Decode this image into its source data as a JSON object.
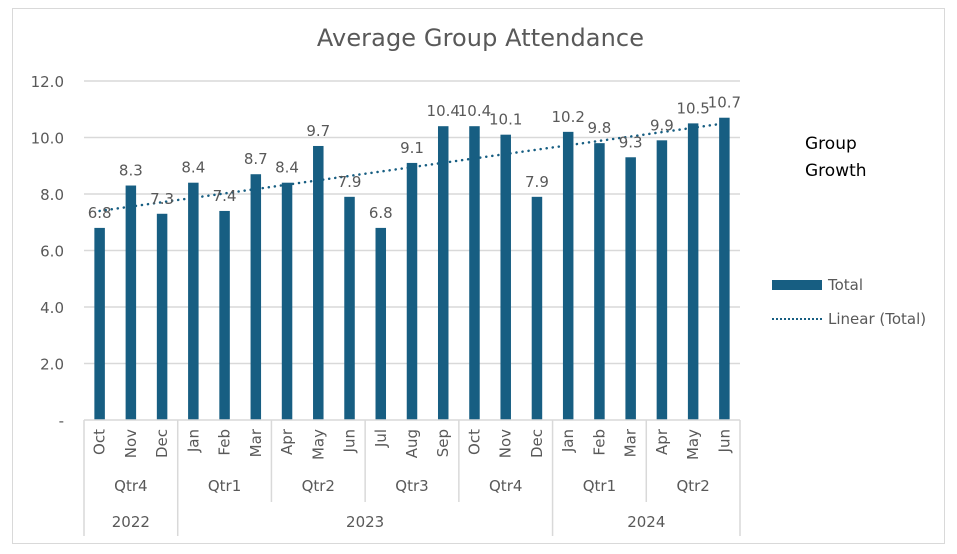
{
  "chart_data": {
    "type": "bar",
    "title": "Average Group Attendance",
    "xlabel": "",
    "ylabel": "",
    "ylim": [
      0,
      12
    ],
    "yticks": [
      0,
      2,
      4,
      6,
      8,
      10,
      12
    ],
    "ytick_labels": [
      "-",
      "2.0",
      "4.0",
      "6.0",
      "8.0",
      "10.0",
      "12.0"
    ],
    "grid": true,
    "categories": [
      "Oct",
      "Nov",
      "Dec",
      "Jan",
      "Feb",
      "Mar",
      "Apr",
      "May",
      "Jun",
      "Jul",
      "Aug",
      "Sep",
      "Oct",
      "Nov",
      "Dec",
      "Jan",
      "Feb",
      "Mar",
      "Apr",
      "May",
      "Jun"
    ],
    "quarter_groups": [
      {
        "label": "Qtr4",
        "span": 3
      },
      {
        "label": "Qtr1",
        "span": 3
      },
      {
        "label": "Qtr2",
        "span": 3
      },
      {
        "label": "Qtr3",
        "span": 3
      },
      {
        "label": "Qtr4",
        "span": 3
      },
      {
        "label": "Qtr1",
        "span": 3
      },
      {
        "label": "Qtr2",
        "span": 3
      }
    ],
    "year_groups": [
      {
        "label": "2022",
        "span": 3
      },
      {
        "label": "2023",
        "span": 12
      },
      {
        "label": "2024",
        "span": 6
      }
    ],
    "series": [
      {
        "name": "Total",
        "kind": "bar",
        "color": "#175e82",
        "values": [
          6.8,
          8.3,
          7.3,
          8.4,
          7.4,
          8.7,
          8.4,
          9.7,
          7.9,
          6.8,
          9.1,
          10.4,
          10.4,
          10.1,
          7.9,
          10.2,
          9.8,
          9.3,
          9.9,
          10.5,
          10.7
        ],
        "data_labels": [
          "6.8",
          "8.3",
          "7.3",
          "8.4",
          "7.4",
          "8.7",
          "8.4",
          "9.7",
          "7.9",
          "6.8",
          "9.1",
          "10.4",
          "10.4",
          "10.1",
          "7.9",
          "10.2",
          "9.8",
          "9.3",
          "9.9",
          "10.5",
          "10.7"
        ]
      },
      {
        "name": "Linear (Total)",
        "kind": "trendline",
        "style": "dotted",
        "color": "#175e82",
        "start": 7.4,
        "end": 10.5
      }
    ],
    "legend": {
      "position": "right",
      "entries": [
        "Total",
        "Linear (Total)"
      ]
    },
    "annotation": "Group Growth"
  },
  "colors": {
    "bar": "#175e82",
    "grid": "#d9d9d9",
    "text": "#595959"
  }
}
